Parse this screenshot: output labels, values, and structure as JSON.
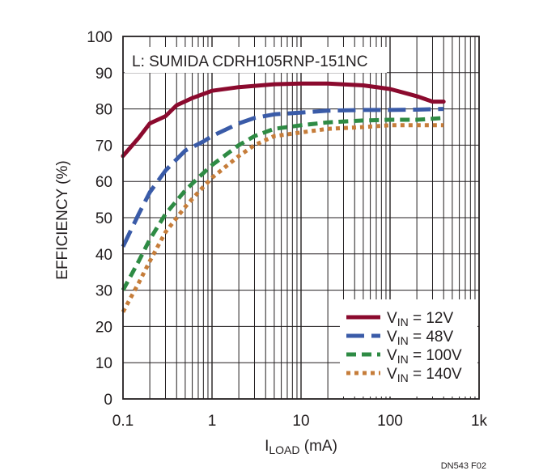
{
  "chart_data": {
    "type": "line",
    "xscale": "log",
    "xlim": [
      0.1,
      1000
    ],
    "ylim": [
      0,
      100
    ],
    "xticks": [
      0.1,
      1,
      10,
      100,
      1000
    ],
    "xtick_labels": [
      "0.1",
      "1",
      "10",
      "100",
      "1k"
    ],
    "yticks": [
      0,
      10,
      20,
      30,
      40,
      50,
      60,
      70,
      80,
      90,
      100
    ],
    "ytick_labels": [
      "0",
      "10",
      "20",
      "30",
      "40",
      "50",
      "60",
      "70",
      "80",
      "90",
      "100"
    ],
    "grid": true,
    "ylabel": "EFFICIENCY (%)",
    "xlabel_main": "I",
    "xlabel_sub": "LOAD",
    "xlabel_unit": " (mA)",
    "annotation": "L: SUMIDA CDRH105RNP-151NC",
    "footnote": "DN543 F02",
    "legend_position": "bottom-right",
    "series": [
      {
        "name": "VIN = 12V",
        "label_main": "V",
        "label_sub": "IN",
        "label_value": " = 12V",
        "color": "#8b0a2e",
        "dash": "solid",
        "x": [
          0.1,
          0.15,
          0.2,
          0.3,
          0.4,
          0.6,
          1,
          2,
          5,
          10,
          20,
          50,
          100,
          200,
          300,
          400
        ],
        "values": [
          67,
          72,
          76,
          78,
          81,
          83,
          85,
          86,
          86.8,
          87,
          87,
          86.5,
          85.5,
          83.5,
          82,
          82
        ]
      },
      {
        "name": "VIN = 48V",
        "label_main": "V",
        "label_sub": "IN",
        "label_value": " = 48V",
        "color": "#3a5ba8",
        "dash": "longdash",
        "x": [
          0.1,
          0.15,
          0.2,
          0.3,
          0.5,
          0.8,
          1,
          2,
          3,
          5,
          10,
          20,
          50,
          100,
          200,
          400
        ],
        "values": [
          42,
          51,
          57,
          63,
          68.5,
          71,
          72.5,
          76,
          77.5,
          78.5,
          79,
          79.5,
          79.7,
          79.7,
          79.8,
          80
        ]
      },
      {
        "name": "VIN = 100V",
        "label_main": "V",
        "label_sub": "IN",
        "label_value": " = 100V",
        "color": "#2e8b44",
        "dash": "dash",
        "x": [
          0.1,
          0.15,
          0.2,
          0.3,
          0.5,
          0.7,
          1,
          2,
          3,
          5,
          10,
          20,
          50,
          100,
          200,
          400
        ],
        "values": [
          30,
          38,
          44,
          51,
          57.5,
          61,
          64.5,
          70,
          72.5,
          74.5,
          75.5,
          76.3,
          76.8,
          77,
          77,
          77.5
        ]
      },
      {
        "name": "VIN = 140V",
        "label_main": "V",
        "label_sub": "IN",
        "label_value": " = 140V",
        "color": "#c67d3a",
        "dash": "dot",
        "x": [
          0.1,
          0.15,
          0.2,
          0.3,
          0.5,
          0.7,
          1,
          2,
          3,
          5,
          10,
          20,
          50,
          100,
          200,
          400
        ],
        "values": [
          24,
          32,
          38,
          46,
          53,
          57,
          61,
          67,
          70,
          72.5,
          73.5,
          74.5,
          75,
          75.5,
          75.5,
          75.5
        ]
      }
    ]
  }
}
